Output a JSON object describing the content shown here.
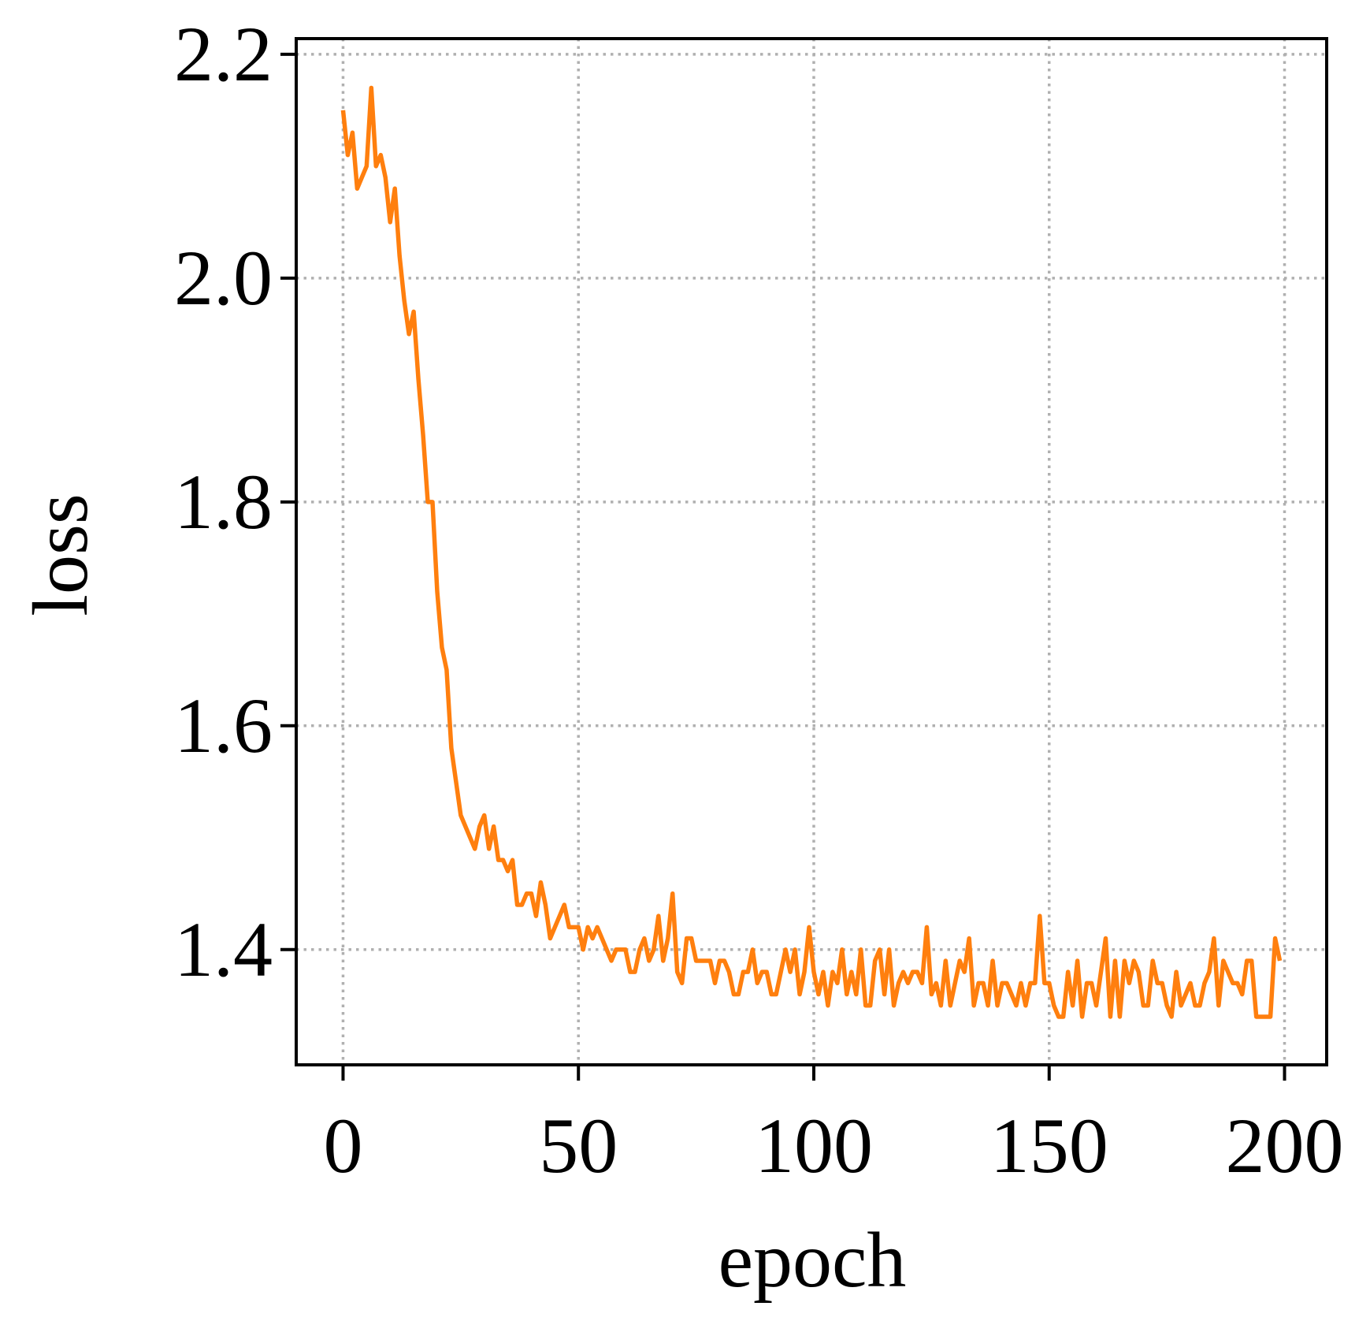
{
  "chart_data": {
    "type": "line",
    "xlabel": "epoch",
    "ylabel": "loss",
    "xlim": [
      -9.95,
      208.95
    ],
    "ylim": [
      1.297,
      2.214
    ],
    "xticks": [
      0,
      50,
      100,
      150,
      200
    ],
    "yticks": [
      1.4,
      1.6,
      1.8,
      {
        "value": 2.0,
        "label": "2.0"
      },
      2.2
    ],
    "grid": true,
    "x": [
      0,
      1,
      2,
      3,
      4,
      5,
      6,
      7,
      8,
      9,
      10,
      11,
      12,
      13,
      14,
      15,
      16,
      17,
      18,
      19,
      20,
      21,
      22,
      23,
      24,
      25,
      26,
      27,
      28,
      29,
      30,
      31,
      32,
      33,
      34,
      35,
      36,
      37,
      38,
      39,
      40,
      41,
      42,
      43,
      44,
      45,
      46,
      47,
      48,
      49,
      50,
      51,
      52,
      53,
      54,
      55,
      56,
      57,
      58,
      59,
      60,
      61,
      62,
      63,
      64,
      65,
      66,
      67,
      68,
      69,
      70,
      71,
      72,
      73,
      74,
      75,
      76,
      77,
      78,
      79,
      80,
      81,
      82,
      83,
      84,
      85,
      86,
      87,
      88,
      89,
      90,
      91,
      92,
      93,
      94,
      95,
      96,
      97,
      98,
      99,
      100,
      101,
      102,
      103,
      104,
      105,
      106,
      107,
      108,
      109,
      110,
      111,
      112,
      113,
      114,
      115,
      116,
      117,
      118,
      119,
      120,
      121,
      122,
      123,
      124,
      125,
      126,
      127,
      128,
      129,
      130,
      131,
      132,
      133,
      134,
      135,
      136,
      137,
      138,
      139,
      140,
      141,
      142,
      143,
      144,
      145,
      146,
      147,
      148,
      149,
      150,
      151,
      152,
      153,
      154,
      155,
      156,
      157,
      158,
      159,
      160,
      161,
      162,
      163,
      164,
      165,
      166,
      167,
      168,
      169,
      170,
      171,
      172,
      173,
      174,
      175,
      176,
      177,
      178,
      179,
      180,
      181,
      182,
      183,
      184,
      185,
      186,
      187,
      188,
      189,
      190,
      191,
      192,
      193,
      194,
      195,
      196,
      197,
      198,
      199
    ],
    "series": [
      {
        "color": "#ff7f0e",
        "values": [
          2.15,
          2.11,
          2.13,
          2.08,
          2.09,
          2.1,
          2.17,
          2.1,
          2.11,
          2.09,
          2.05,
          2.08,
          2.02,
          1.98,
          1.95,
          1.97,
          1.91,
          1.86,
          1.8,
          1.8,
          1.72,
          1.67,
          1.65,
          1.58,
          1.55,
          1.52,
          1.51,
          1.5,
          1.49,
          1.51,
          1.52,
          1.49,
          1.51,
          1.48,
          1.48,
          1.47,
          1.48,
          1.44,
          1.44,
          1.45,
          1.45,
          1.43,
          1.46,
          1.44,
          1.41,
          1.42,
          1.43,
          1.44,
          1.42,
          1.42,
          1.42,
          1.4,
          1.42,
          1.41,
          1.42,
          1.41,
          1.4,
          1.39,
          1.4,
          1.4,
          1.4,
          1.38,
          1.38,
          1.4,
          1.41,
          1.39,
          1.4,
          1.43,
          1.39,
          1.41,
          1.45,
          1.38,
          1.37,
          1.41,
          1.41,
          1.39,
          1.39,
          1.39,
          1.39,
          1.37,
          1.39,
          1.39,
          1.38,
          1.36,
          1.36,
          1.38,
          1.38,
          1.4,
          1.37,
          1.38,
          1.38,
          1.36,
          1.36,
          1.38,
          1.4,
          1.38,
          1.4,
          1.36,
          1.38,
          1.42,
          1.38,
          1.36,
          1.38,
          1.35,
          1.38,
          1.37,
          1.4,
          1.36,
          1.38,
          1.36,
          1.4,
          1.35,
          1.35,
          1.39,
          1.4,
          1.36,
          1.4,
          1.35,
          1.37,
          1.38,
          1.37,
          1.38,
          1.38,
          1.37,
          1.42,
          1.36,
          1.37,
          1.35,
          1.39,
          1.35,
          1.37,
          1.39,
          1.38,
          1.41,
          1.35,
          1.37,
          1.37,
          1.35,
          1.39,
          1.35,
          1.37,
          1.37,
          1.36,
          1.35,
          1.37,
          1.35,
          1.37,
          1.37,
          1.43,
          1.37,
          1.37,
          1.35,
          1.34,
          1.34,
          1.38,
          1.35,
          1.39,
          1.34,
          1.37,
          1.37,
          1.35,
          1.38,
          1.41,
          1.34,
          1.39,
          1.34,
          1.39,
          1.37,
          1.39,
          1.38,
          1.35,
          1.35,
          1.39,
          1.37,
          1.37,
          1.35,
          1.34,
          1.38,
          1.35,
          1.36,
          1.37,
          1.35,
          1.35,
          1.37,
          1.38,
          1.41,
          1.35,
          1.39,
          1.38,
          1.37,
          1.37,
          1.36,
          1.39,
          1.39,
          1.34,
          1.34,
          1.34,
          1.34,
          1.41,
          1.39
        ]
      }
    ]
  }
}
